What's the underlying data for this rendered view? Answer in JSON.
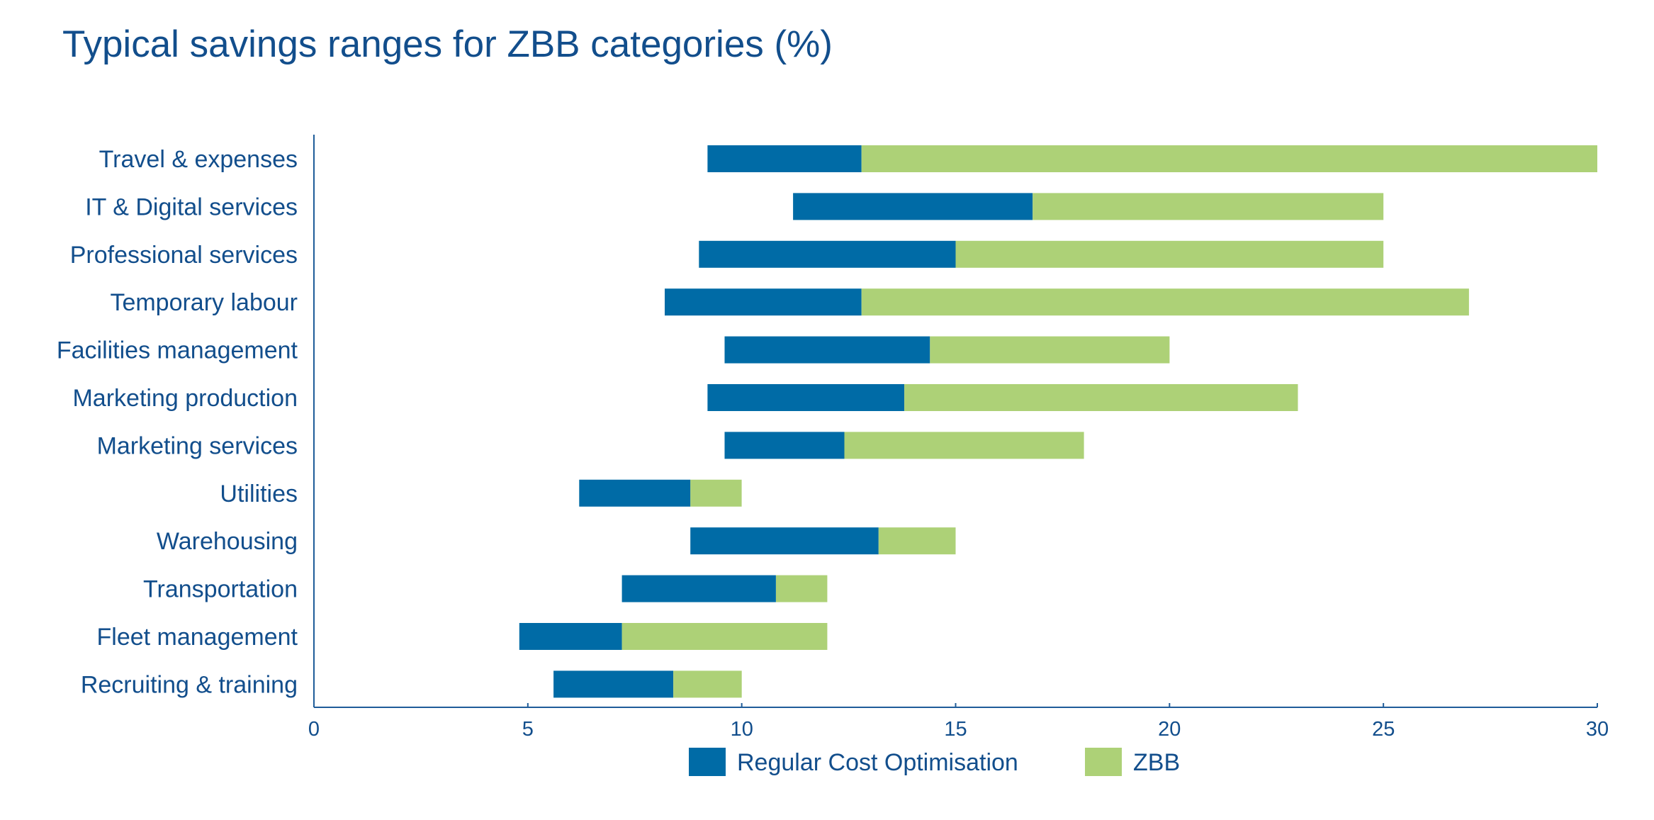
{
  "title": "Typical savings ranges for ZBB categories (%)",
  "colors": {
    "regular": "#006ba6",
    "zbb": "#add177",
    "text": "#124e8c",
    "axis": "#1f5c99"
  },
  "chart_data": {
    "type": "bar",
    "orientation": "horizontal",
    "stacked": true,
    "title": "Typical savings ranges for ZBB categories (%)",
    "xlabel": "",
    "ylabel": "",
    "xlim": [
      0,
      30
    ],
    "xticks": [
      0,
      5,
      10,
      15,
      20,
      25,
      30
    ],
    "grid": false,
    "legend_position": "bottom",
    "categories": [
      "Travel & expenses",
      "IT & Digital services",
      "Professional services",
      "Temporary labour",
      "Facilities management",
      "Marketing production",
      "Marketing services",
      "Utilities",
      "Warehousing",
      "Transportation",
      "Fleet management",
      "Recruiting & training"
    ],
    "series": [
      {
        "name": "Regular Cost Optimisation",
        "color": "#006ba6",
        "ranges": [
          [
            9.2,
            12.8
          ],
          [
            11.2,
            16.8
          ],
          [
            9.0,
            15.0
          ],
          [
            8.2,
            12.8
          ],
          [
            9.6,
            14.4
          ],
          [
            9.2,
            13.8
          ],
          [
            9.6,
            12.4
          ],
          [
            6.2,
            8.8
          ],
          [
            8.8,
            13.2
          ],
          [
            7.2,
            10.8
          ],
          [
            4.8,
            7.2
          ],
          [
            5.6,
            8.4
          ]
        ]
      },
      {
        "name": "ZBB",
        "color": "#add177",
        "ranges": [
          [
            12.8,
            30
          ],
          [
            16.8,
            25
          ],
          [
            15.0,
            25
          ],
          [
            12.8,
            27
          ],
          [
            14.4,
            20
          ],
          [
            13.8,
            23
          ],
          [
            12.4,
            18
          ],
          [
            8.8,
            10
          ],
          [
            13.2,
            15
          ],
          [
            10.8,
            12
          ],
          [
            7.2,
            12
          ],
          [
            8.4,
            10
          ]
        ]
      }
    ]
  }
}
